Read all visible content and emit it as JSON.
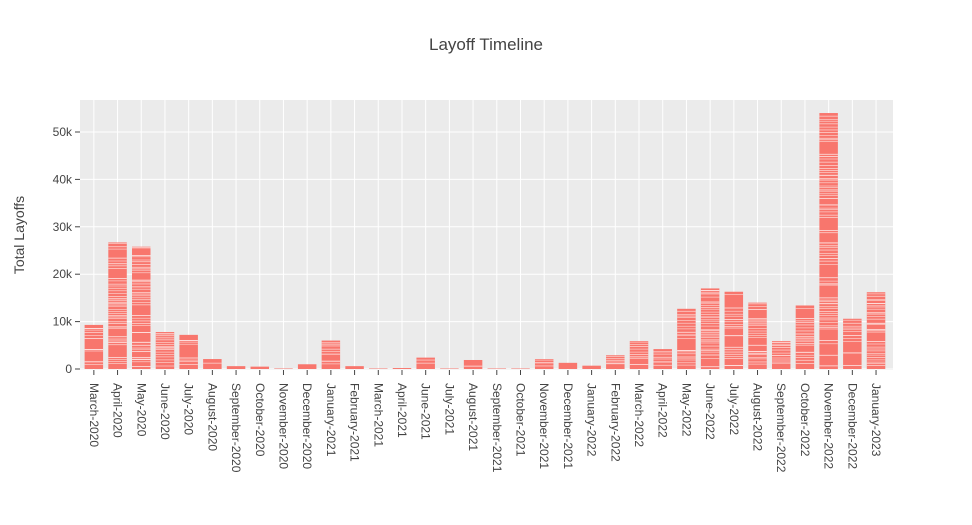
{
  "chart_data": {
    "type": "bar",
    "title": "Layoff Timeline",
    "xlabel": "",
    "ylabel": "Total Layoffs",
    "categories": [
      "March-2020",
      "April-2020",
      "May-2020",
      "June-2020",
      "July-2020",
      "August-2020",
      "September-2020",
      "October-2020",
      "November-2020",
      "December-2020",
      "January-2021",
      "February-2021",
      "March-2021",
      "April-2021",
      "June-2021",
      "July-2021",
      "August-2021",
      "September-2021",
      "October-2021",
      "November-2021",
      "December-2021",
      "January-2022",
      "February-2022",
      "March-2022",
      "April-2022",
      "May-2022",
      "June-2022",
      "July-2022",
      "August-2022",
      "September-2022",
      "October-2022",
      "November-2022",
      "December-2022",
      "January-2023"
    ],
    "values": [
      9300,
      26700,
      25800,
      7800,
      7200,
      2100,
      600,
      500,
      100,
      1000,
      6000,
      600,
      100,
      200,
      2400,
      100,
      1900,
      100,
      100,
      2100,
      1300,
      700,
      2900,
      5900,
      4200,
      12700,
      17000,
      16300,
      14000,
      5900,
      13400,
      54000,
      10600,
      16200
    ],
    "ylim": [
      0,
      57000
    ],
    "yticks": [
      0,
      10000,
      20000,
      30000,
      40000,
      50000
    ],
    "ytick_labels": [
      "0",
      "10k",
      "20k",
      "30k",
      "40k",
      "50k"
    ],
    "grid": true,
    "bar_color": "#f8766d",
    "plot_background": "#ebebeb",
    "note_stacking": "Each month bar is a stack of many individual layoff events separated by thin white lines."
  }
}
